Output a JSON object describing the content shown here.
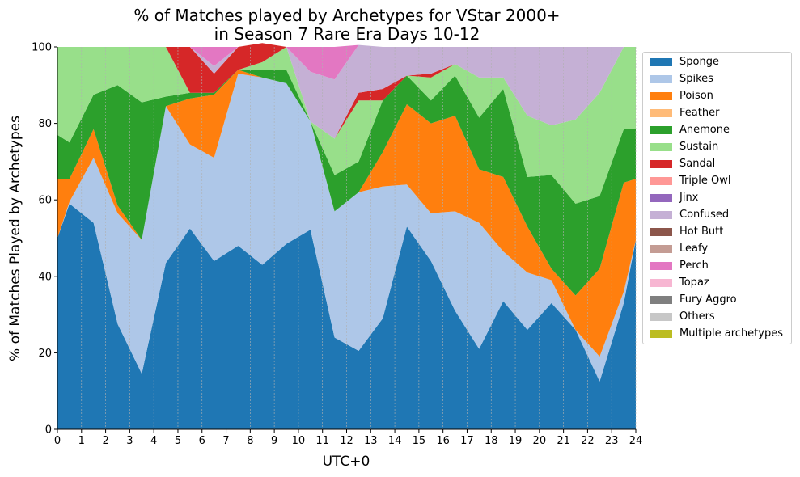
{
  "chart_data": {
    "type": "area",
    "stacked": true,
    "title_line1": "% of Matches played by Archetypes for VStar 2000+",
    "title_line2": "in Season 7 Rare Era Days 10-12",
    "xlabel": "UTC+0",
    "ylabel": "% of Matches Played by Archetypes",
    "xlim": [
      0,
      24
    ],
    "ylim": [
      0,
      100
    ],
    "grid": "vertical dashed",
    "legend_position": "outside-right",
    "x": [
      0,
      0.5,
      1.5,
      2.5,
      3.5,
      4.5,
      5.5,
      6.5,
      7.5,
      8.5,
      9.5,
      10.5,
      11.5,
      12.5,
      13.5,
      14.5,
      15.5,
      16.5,
      17.5,
      18.5,
      19.5,
      20.5,
      21.5,
      22.5,
      23.5,
      24
    ],
    "x_tick_labels": [
      "0",
      "1",
      "2",
      "3",
      "4",
      "5",
      "6",
      "7",
      "8",
      "9",
      "10",
      "11",
      "12",
      "13",
      "14",
      "15",
      "16",
      "17",
      "18",
      "19",
      "20",
      "21",
      "22",
      "23",
      "24"
    ],
    "y_tick_labels": [
      "0",
      "20",
      "40",
      "60",
      "80",
      "100"
    ],
    "series": [
      {
        "name": "Sponge",
        "color": "#1f77b4",
        "values": [
          50,
          59,
          54,
          27.5,
          14.5,
          43.5,
          52.5,
          44,
          48,
          43,
          48.5,
          52.2,
          24,
          20.5,
          29,
          53,
          44,
          31,
          21,
          33.5,
          26,
          33,
          26,
          12.5,
          33,
          49.5
        ]
      },
      {
        "name": "Spikes",
        "color": "#aec7e8",
        "values": [
          0,
          0.5,
          17,
          29,
          35,
          41,
          22,
          27,
          45,
          49,
          42,
          28.3,
          33,
          41.5,
          34.5,
          11,
          12.5,
          26,
          33,
          13,
          15,
          6,
          0,
          6.5,
          3,
          0
        ]
      },
      {
        "name": "Poison",
        "color": "#ff7f0e",
        "values": [
          15.5,
          6,
          7.5,
          2,
          0,
          0,
          12,
          16.5,
          1,
          0,
          0,
          0,
          0,
          0,
          9,
          21,
          23.5,
          25,
          14,
          19.5,
          12,
          3,
          9,
          23,
          28.5,
          16
        ]
      },
      {
        "name": "Feather",
        "color": "#ffbb78",
        "values": [
          0,
          0,
          0,
          0,
          0,
          0,
          0,
          0,
          0,
          0,
          0,
          0,
          0,
          0,
          0,
          0,
          0,
          0,
          0,
          0,
          0,
          0,
          0,
          0,
          0,
          0
        ]
      },
      {
        "name": "Anemone",
        "color": "#2ca02c",
        "values": [
          11.5,
          9.5,
          9,
          31.5,
          36,
          2.5,
          1.5,
          0.5,
          0,
          2,
          3.5,
          0,
          9.5,
          8,
          13.5,
          7.5,
          6,
          10.5,
          13.5,
          23,
          13,
          24.5,
          24,
          19,
          14,
          13
        ]
      },
      {
        "name": "Sustain",
        "color": "#98df8a",
        "values": [
          23,
          25,
          12.5,
          10,
          14.5,
          13,
          0,
          0,
          0,
          2,
          6,
          0,
          9.5,
          16,
          0,
          0,
          6,
          3,
          10.5,
          3,
          16,
          13,
          22,
          27,
          21.5,
          21.5
        ]
      },
      {
        "name": "Sandal",
        "color": "#d62728",
        "values": [
          0,
          0,
          0,
          0,
          0,
          0,
          12,
          5,
          6,
          5,
          0,
          0,
          0,
          2,
          3,
          0,
          1,
          0,
          0,
          0,
          0,
          0,
          0,
          0,
          0,
          0
        ]
      },
      {
        "name": "Triple Owl",
        "color": "#ff9896",
        "values": [
          0,
          0,
          0,
          0,
          0,
          0,
          0,
          0,
          0,
          0,
          0,
          0,
          0,
          0,
          0,
          0,
          0,
          0,
          0,
          0,
          0,
          0,
          0,
          0,
          0,
          0
        ]
      },
      {
        "name": "Jinx",
        "color": "#9467bd",
        "values": [
          0,
          0,
          0,
          0,
          0,
          0,
          0,
          0,
          0,
          0,
          0,
          0,
          0,
          0,
          0,
          0,
          0,
          0,
          0,
          0,
          0,
          0,
          0,
          0,
          0,
          0
        ]
      },
      {
        "name": "Confused",
        "color": "#c5b0d5",
        "values": [
          0,
          0,
          0,
          0,
          0,
          0,
          0,
          2,
          0,
          0,
          0,
          13,
          15.5,
          12.5,
          11,
          7.5,
          7,
          4.5,
          8,
          8,
          18,
          20.5,
          19,
          12,
          0,
          0
        ]
      },
      {
        "name": "Hot Butt",
        "color": "#8c564b",
        "values": [
          0,
          0,
          0,
          0,
          0,
          0,
          0,
          0,
          0,
          0,
          0,
          0,
          0,
          0,
          0,
          0,
          0,
          0,
          0,
          0,
          0,
          0,
          0,
          0,
          0,
          0
        ]
      },
      {
        "name": "Leafy",
        "color": "#c49c94",
        "values": [
          0,
          0,
          0,
          0,
          0,
          0,
          0,
          0,
          0,
          0,
          0,
          0,
          0,
          0,
          0,
          0,
          0,
          0,
          0,
          0,
          0,
          0,
          0,
          0,
          0,
          0
        ]
      },
      {
        "name": "Perch",
        "color": "#e377c2",
        "values": [
          0,
          0,
          0,
          0,
          0,
          0,
          0,
          5,
          0,
          0,
          0,
          6.5,
          8.5,
          0,
          0,
          0,
          0,
          0,
          0,
          0,
          0,
          0,
          0,
          0,
          0,
          0
        ]
      },
      {
        "name": "Topaz",
        "color": "#f7b6d2",
        "values": [
          0,
          0,
          0,
          0,
          0,
          0,
          0,
          0,
          0,
          0,
          0,
          0,
          0,
          0,
          0,
          0,
          0,
          0,
          0,
          0,
          0,
          0,
          0,
          0,
          0,
          0
        ]
      },
      {
        "name": "Fury Aggro",
        "color": "#7f7f7f",
        "values": [
          0,
          0,
          0,
          0,
          0,
          0,
          0,
          0,
          0,
          0,
          0,
          0,
          0,
          0,
          0,
          0,
          0,
          0,
          0,
          0,
          0,
          0,
          0,
          0,
          0,
          0
        ]
      },
      {
        "name": "Others",
        "color": "#c7c7c7",
        "values": [
          0,
          0,
          0,
          0,
          0,
          0,
          0,
          0,
          0,
          0,
          0,
          0,
          0,
          0,
          0,
          0,
          0,
          0,
          0,
          0,
          0,
          0,
          0,
          0,
          0,
          0
        ]
      },
      {
        "name": "Multiple archetypes",
        "color": "#bcbd22",
        "values": [
          0,
          0,
          0,
          0,
          0,
          0,
          0,
          0,
          0,
          0,
          0,
          0,
          0,
          0,
          0,
          0,
          0,
          0,
          0,
          0,
          0,
          0,
          0,
          0,
          0,
          0
        ]
      }
    ]
  }
}
